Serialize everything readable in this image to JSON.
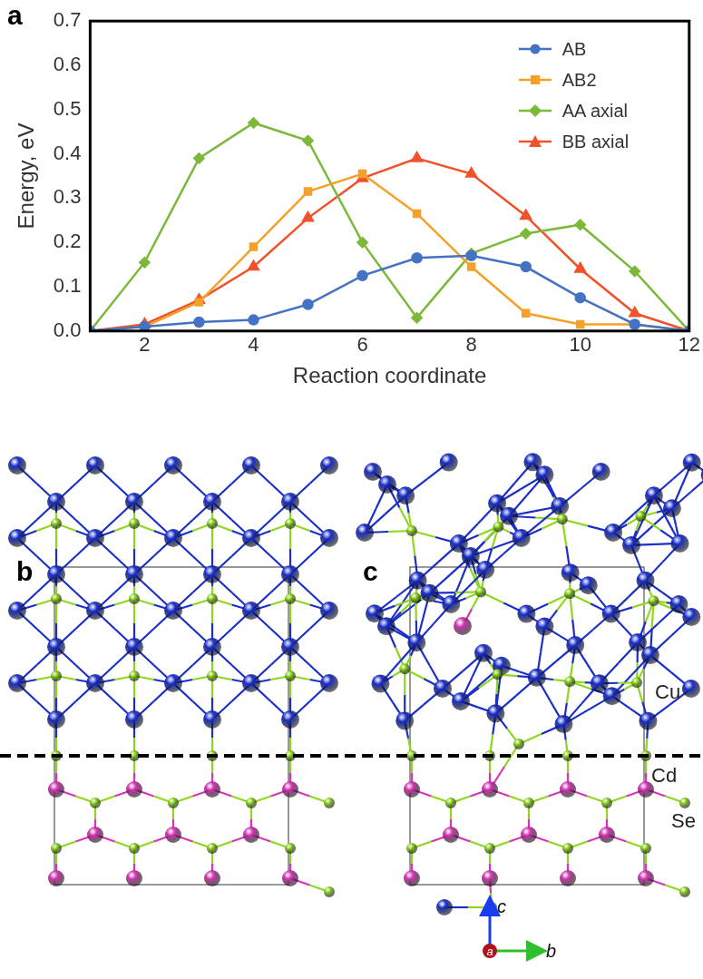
{
  "panel_labels": [
    "a",
    "b",
    "c"
  ],
  "chart_data": {
    "type": "line",
    "x": [
      1,
      2,
      3,
      4,
      5,
      6,
      7,
      8,
      9,
      10,
      11,
      12
    ],
    "xlim": [
      1,
      12
    ],
    "xticks": [
      2,
      4,
      6,
      8,
      10,
      12
    ],
    "ylim": [
      0,
      0.7
    ],
    "yticks": [
      {
        "value": 0,
        "label": "0.0"
      },
      0.1,
      0.2,
      0.3,
      0.4,
      0.5,
      0.6,
      0.7
    ],
    "x_label": "Reaction coordinate",
    "y_label": "Energy, eV",
    "grid": false,
    "legend": "top-right",
    "series": [
      {
        "name": "AB",
        "color": "#4472c4",
        "marker": "circle",
        "values": [
          0,
          0.01,
          0.02,
          0.025,
          0.06,
          0.125,
          0.165,
          0.17,
          0.145,
          0.075,
          0.015,
          0
        ]
      },
      {
        "name": "AB2",
        "color": "#f5a028",
        "marker": "square",
        "values": [
          0,
          0.01,
          0.065,
          0.19,
          0.315,
          0.355,
          0.265,
          0.145,
          0.04,
          0.015,
          0.015,
          0
        ]
      },
      {
        "name": "AA axial",
        "color": "#7cb83a",
        "marker": "diamond",
        "values": [
          0,
          0.155,
          0.39,
          0.47,
          0.43,
          0.2,
          0.03,
          0.175,
          0.22,
          0.24,
          0.135,
          0
        ]
      },
      {
        "name": "BB axial",
        "color": "#f0522a",
        "marker": "triangle",
        "values": [
          0,
          0.015,
          0.07,
          0.145,
          0.255,
          0.345,
          0.39,
          0.355,
          0.26,
          0.14,
          0.04,
          0
        ]
      }
    ]
  },
  "structures": {
    "elements": [
      {
        "name": "Cu",
        "color": "#1a2fc8"
      },
      {
        "name": "Cd",
        "color": "#d635b5"
      },
      {
        "name": "Se",
        "color": "#8fd61f"
      }
    ],
    "crystal_axes": [
      {
        "name": "c",
        "color": "#1a3cf0"
      },
      {
        "name": "a",
        "color": "#b0121b"
      },
      {
        "name": "b",
        "color": "#2fbf2f"
      }
    ]
  }
}
